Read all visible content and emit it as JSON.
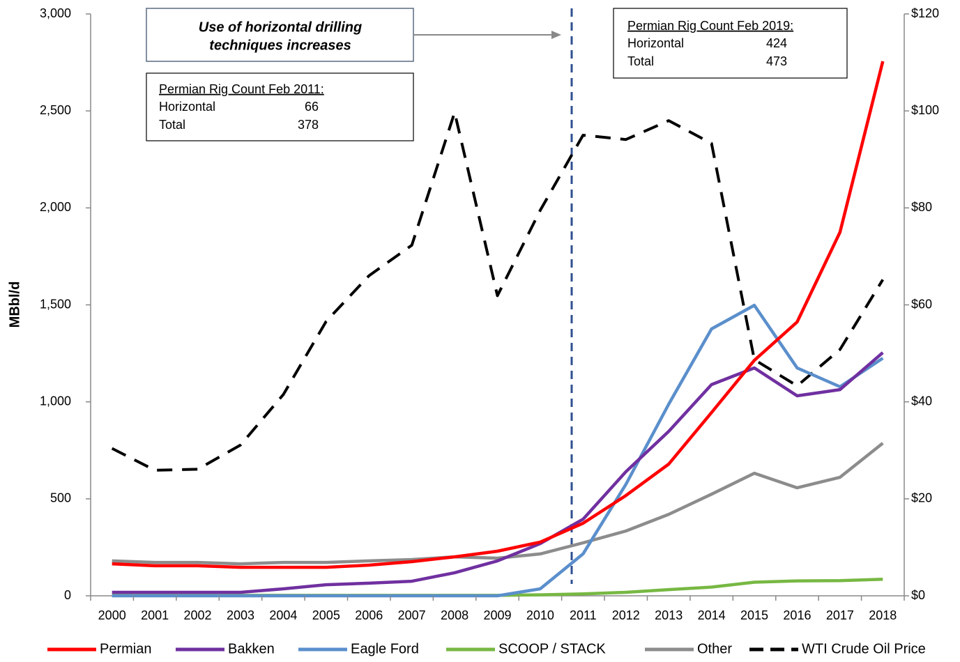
{
  "chart_data": {
    "type": "line",
    "y_label": "MBbl/d",
    "categories": [
      "2000",
      "2001",
      "2002",
      "2003",
      "2004",
      "2005",
      "2006",
      "2007",
      "2008",
      "2009",
      "2010",
      "2011",
      "2012",
      "2013",
      "2014",
      "2015",
      "2016",
      "2017",
      "2018"
    ],
    "series": [
      {
        "name": "Permian",
        "color": "#ff0000",
        "values": [
          165,
          155,
          155,
          147,
          147,
          147,
          158,
          176,
          201,
          230,
          277,
          374,
          517,
          679,
          945,
          1214,
          1412,
          1875,
          2756
        ]
      },
      {
        "name": "Bakken",
        "color": "#7030a0",
        "values": [
          18,
          18,
          18,
          18,
          36,
          57,
          65,
          75,
          119,
          180,
          269,
          395,
          640,
          848,
          1089,
          1175,
          1031,
          1063,
          1254
        ]
      },
      {
        "name": "Eagle Ford",
        "color": "#5b8fcc",
        "values": [
          0,
          0,
          0,
          0,
          0,
          0,
          0,
          0,
          0,
          0,
          36,
          216,
          575,
          988,
          1376,
          1498,
          1175,
          1078,
          1225
        ]
      },
      {
        "name": "SCOOP / STACK",
        "color": "#77b843",
        "values": [
          2,
          2,
          2,
          2,
          2,
          2,
          2,
          2,
          2,
          2,
          5,
          10,
          18,
          32,
          45,
          70,
          77,
          78,
          85
        ]
      },
      {
        "name": "Other",
        "color": "#8c8c8c",
        "values": [
          180,
          172,
          172,
          165,
          172,
          172,
          180,
          187,
          201,
          194,
          216,
          273,
          334,
          420,
          524,
          632,
          557,
          611,
          787
        ]
      },
      {
        "name": "WTI Crude Oil Price",
        "color": "#000000",
        "dashed": true,
        "axis": "y2",
        "values": [
          30.4,
          25.9,
          26.1,
          31.1,
          41.5,
          56.6,
          66,
          72.3,
          99.7,
          61.9,
          79.5,
          95,
          94.1,
          98,
          93.3,
          48.7,
          43.3,
          50.8,
          65.2
        ]
      }
    ],
    "ylim": [
      0,
      3000
    ],
    "yticks": [
      0,
      {
        "value": 500,
        "label": "500"
      },
      {
        "value": 1000,
        "label": "1,000"
      },
      {
        "value": 1500,
        "label": "1,500"
      },
      {
        "value": 2000,
        "label": "2,000"
      },
      {
        "value": 2500,
        "label": "2,500"
      },
      {
        "value": 3000,
        "label": "3,000"
      }
    ],
    "y2lim": [
      0,
      120
    ],
    "y2ticks": [
      {
        "value": 0,
        "label": "$0"
      },
      {
        "value": 20,
        "label": "$20"
      },
      {
        "value": 40,
        "label": "$40"
      },
      {
        "value": 60,
        "label": "$60"
      },
      {
        "value": 80,
        "label": "$80"
      },
      {
        "value": 100,
        "label": "$100"
      },
      {
        "value": 120,
        "label": "$120"
      }
    ],
    "legend": "bottom",
    "annotations": [
      {
        "text": [
          "Use of horizontal drilling",
          "techniques increases"
        ]
      },
      {
        "title": "Permian Rig Count Feb 2011:",
        "rows": [
          [
            "Horizontal",
            66
          ],
          [
            "Total",
            378
          ]
        ]
      },
      {
        "title": "Permian Rig Count Feb 2019:",
        "rows": [
          [
            "Horizontal",
            424
          ],
          [
            "Total",
            473
          ]
        ]
      }
    ]
  }
}
